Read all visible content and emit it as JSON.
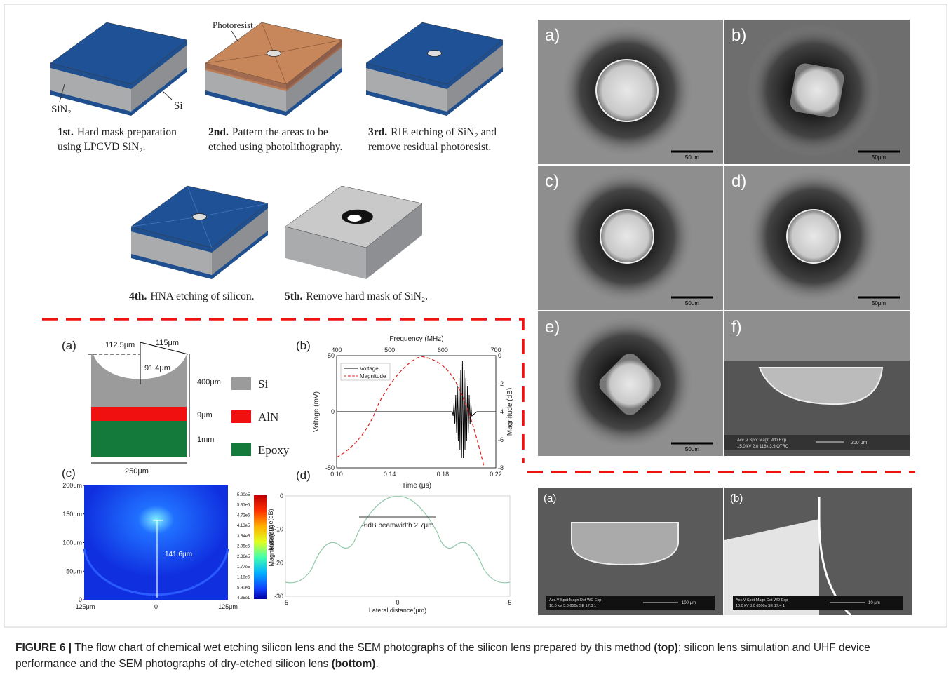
{
  "flow": {
    "labels": {
      "photoresist": "Photoresist",
      "sin2": "SiN₂",
      "si": "Si"
    },
    "steps": [
      {
        "step": "1st.",
        "lines": [
          "Hard mask preparation",
          "using LPCVD SiN₂."
        ]
      },
      {
        "step": "2nd.",
        "lines": [
          "Pattern the areas to be",
          "etched using photolithography."
        ]
      },
      {
        "step": "3rd.",
        "lines": [
          "RIE etching of SiN₂ and",
          "remove residual photoresist."
        ]
      },
      {
        "step": "4th.",
        "lines": [
          "HNA etching of silicon."
        ]
      },
      {
        "step": "5th.",
        "lines": [
          "Remove hard mask of SiN₂."
        ]
      }
    ]
  },
  "sem_top": {
    "panels": [
      {
        "label": "a)",
        "scale": "50μm"
      },
      {
        "label": "b)",
        "scale": "50μm"
      },
      {
        "label": "c)",
        "scale": "50μm"
      },
      {
        "label": "d)",
        "scale": "50μm"
      },
      {
        "label": "e)",
        "scale": "50μm"
      },
      {
        "label": "f)",
        "info": [
          "Acc.V  Spot Magn    WD  Exp",
          "15.0 kV 2.0  116x   3.9  OTRC"
        ],
        "scale": "200 μm"
      }
    ]
  },
  "sem_bottom": {
    "panels": [
      {
        "label": "(a)",
        "info": [
          "Acc.V  Spot Magn  Det  WD  Exp",
          "10.0 kV 3.0  650x  SE  17.3  1"
        ],
        "scale": "100 μm"
      },
      {
        "label": "(b)",
        "info": [
          "Acc.V  Spot Magn  Det  WD  Exp",
          "10.0 kV 3.0  6500x  SE  17.4  1"
        ],
        "scale": "10 μm"
      }
    ]
  },
  "schematic": {
    "label": "(a)",
    "dims": {
      "half_opening": "112.5μm",
      "radius": "115μm",
      "depth": "91.4μm",
      "si_thickness": "400μm",
      "aln_thickness": "9μm",
      "epoxy_thickness": "1mm",
      "width": "250μm"
    },
    "legend": [
      "Si",
      "AlN",
      "Epoxy"
    ]
  },
  "voltage_plot": {
    "label": "(b)",
    "x_title": "Time (μs)",
    "x2_title": "Frequency (MHz)",
    "y_title": "Voltage (mV)",
    "y2_title": "Magnitude (dB)",
    "xticks": [
      "0.10",
      "0.14",
      "0.18",
      "0.22"
    ],
    "x2ticks": [
      "400",
      "500",
      "600",
      "700"
    ],
    "yticks": [
      "50",
      "0",
      "-50"
    ],
    "y2ticks": [
      "0",
      "-2",
      "-4",
      "-6",
      "-8"
    ],
    "legend": [
      "Voltage",
      "Magnitude"
    ]
  },
  "simulation": {
    "label": "(c)",
    "yticks": [
      "200μm",
      "150μm",
      "100μm",
      "50μm",
      "0"
    ],
    "xticks": [
      "-125μm",
      "0",
      "125μm"
    ],
    "colorbar_ticks": [
      "5.90e5",
      "5.31e5",
      "4.72e5",
      "4.13e5",
      "3.54e5",
      "2.95e5",
      "2.36e5",
      "1.77e5",
      "1.18e5",
      "5.90e4",
      "4.35e1"
    ],
    "colorbar_title": "Magnitude(dB)",
    "annotation": "141.6μm"
  },
  "beam_plot": {
    "label": "(d)",
    "xticks": [
      "-5",
      "0",
      "5"
    ],
    "yticks": [
      "0",
      "-10",
      "-20",
      "-30"
    ],
    "x_title": "Lateral distance(μm)",
    "y_title": "Magnitude(dB)",
    "annotation": "-6dB beamwidth 2.7μm"
  },
  "caption": {
    "figure": "FIGURE 6 |",
    "text1": " The flow chart of chemical wet etching silicon lens and the SEM photographs of the silicon lens prepared by this method ",
    "bold1": "(top)",
    "text2": "; silicon lens simulation and UHF device performance and the SEM photographs of dry-etched silicon lens ",
    "bold2": "(bottom)",
    "end": "."
  }
}
